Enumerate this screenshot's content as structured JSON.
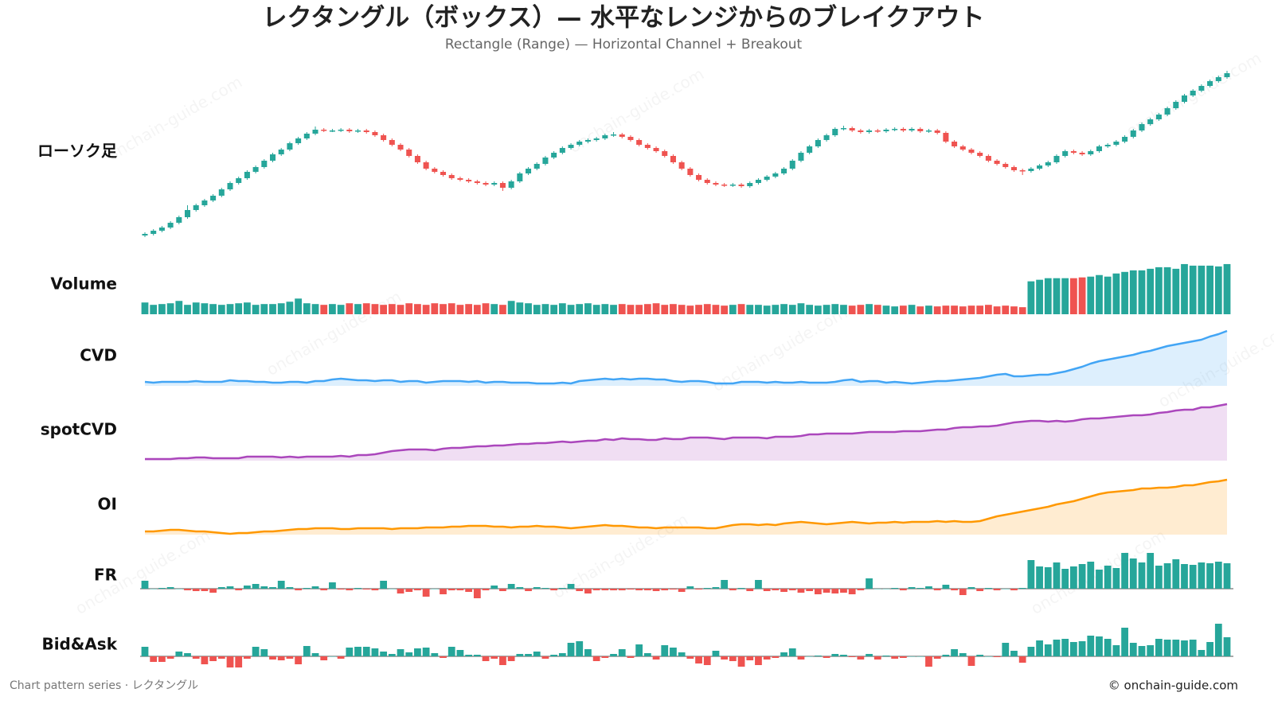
{
  "title": "レクタングル（ボックス）— 水平なレンジからのブレイクアウト",
  "subtitle": "Rectangle (Range) — Horizontal Channel + Breakout",
  "footer_left": "Chart pattern series · レクタングル",
  "footer_right": "© onchain-guide.com",
  "watermark": "onchain-guide.com",
  "chart_data": [
    {
      "type": "candlestick",
      "label": "ローソク足",
      "ylim": [
        0,
        212
      ],
      "up_color": "#26a69a",
      "down_color": "#ef5350",
      "open": [
        4,
        6,
        10,
        14,
        20,
        27,
        36,
        42,
        48,
        54,
        62,
        70,
        76,
        84,
        90,
        98,
        106,
        112,
        120,
        126,
        132,
        137,
        136,
        136,
        137,
        135,
        136,
        134,
        130,
        124,
        118,
        112,
        104,
        96,
        88,
        84,
        80,
        76,
        74,
        72,
        70,
        68,
        70,
        64,
        72,
        82,
        88,
        94,
        102,
        108,
        114,
        118,
        122,
        124,
        126,
        130,
        131,
        128,
        124,
        118,
        114,
        110,
        104,
        96,
        88,
        80,
        74,
        70,
        68,
        67,
        68,
        66,
        70,
        74,
        78,
        82,
        88,
        98,
        108,
        116,
        124,
        130,
        138,
        139,
        136,
        134,
        136,
        135,
        137,
        138,
        136,
        138,
        135,
        136,
        133,
        122,
        116,
        112,
        108,
        104,
        98,
        94,
        90,
        86,
        85,
        88,
        92,
        96,
        104,
        110,
        108,
        106,
        110,
        116,
        118,
        122,
        128,
        136,
        144,
        150,
        156,
        164,
        172,
        180,
        186,
        192,
        198,
        203
      ],
      "high": [
        8,
        12,
        16,
        22,
        29,
        42,
        44,
        50,
        56,
        64,
        72,
        78,
        86,
        92,
        100,
        108,
        114,
        122,
        128,
        134,
        141,
        139,
        138,
        139,
        139,
        138,
        138,
        136,
        132,
        126,
        120,
        114,
        106,
        98,
        90,
        86,
        82,
        78,
        76,
        74,
        72,
        72,
        72,
        74,
        84,
        90,
        96,
        104,
        110,
        116,
        120,
        124,
        126,
        128,
        132,
        134,
        133,
        130,
        126,
        120,
        116,
        112,
        106,
        98,
        90,
        82,
        76,
        72,
        70,
        70,
        70,
        72,
        76,
        80,
        84,
        90,
        100,
        110,
        118,
        126,
        132,
        140,
        142,
        141,
        138,
        138,
        138,
        139,
        140,
        140,
        140,
        140,
        138,
        138,
        135,
        124,
        118,
        114,
        110,
        106,
        100,
        96,
        92,
        88,
        90,
        94,
        98,
        106,
        112,
        112,
        110,
        112,
        118,
        120,
        124,
        130,
        138,
        146,
        152,
        158,
        166,
        174,
        182,
        188,
        194,
        200,
        205,
        211
      ],
      "low": [
        2,
        4,
        8,
        12,
        18,
        25,
        34,
        40,
        46,
        52,
        60,
        68,
        74,
        82,
        88,
        96,
        104,
        110,
        118,
        124,
        130,
        134,
        134,
        134,
        133,
        133,
        132,
        128,
        122,
        116,
        110,
        102,
        94,
        86,
        82,
        78,
        74,
        72,
        70,
        68,
        66,
        66,
        60,
        62,
        70,
        80,
        86,
        92,
        100,
        106,
        112,
        116,
        120,
        122,
        124,
        128,
        126,
        122,
        116,
        112,
        108,
        102,
        94,
        86,
        78,
        72,
        68,
        66,
        65,
        65,
        64,
        64,
        68,
        72,
        76,
        80,
        86,
        96,
        106,
        114,
        122,
        128,
        136,
        134,
        132,
        132,
        133,
        133,
        135,
        134,
        134,
        133,
        133,
        131,
        120,
        114,
        110,
        106,
        102,
        96,
        92,
        88,
        84,
        80,
        83,
        86,
        90,
        94,
        102,
        106,
        104,
        104,
        108,
        114,
        116,
        120,
        126,
        134,
        142,
        148,
        154,
        162,
        170,
        178,
        184,
        190,
        196,
        201
      ],
      "close": [
        6,
        10,
        14,
        20,
        27,
        36,
        42,
        48,
        54,
        62,
        70,
        76,
        84,
        90,
        98,
        106,
        112,
        120,
        126,
        132,
        137,
        136,
        136,
        137,
        135,
        136,
        134,
        130,
        124,
        118,
        112,
        104,
        96,
        88,
        84,
        80,
        76,
        74,
        72,
        70,
        68,
        70,
        64,
        72,
        82,
        88,
        94,
        102,
        108,
        114,
        118,
        122,
        124,
        126,
        130,
        131,
        128,
        124,
        118,
        114,
        110,
        104,
        96,
        88,
        80,
        74,
        70,
        68,
        67,
        68,
        66,
        70,
        74,
        78,
        82,
        88,
        98,
        108,
        116,
        124,
        130,
        138,
        139,
        136,
        134,
        136,
        135,
        137,
        138,
        136,
        138,
        135,
        136,
        133,
        122,
        116,
        112,
        108,
        104,
        98,
        94,
        90,
        86,
        85,
        88,
        92,
        96,
        104,
        110,
        108,
        106,
        110,
        116,
        118,
        122,
        128,
        136,
        144,
        150,
        156,
        164,
        172,
        180,
        186,
        192,
        198,
        203,
        208
      ]
    },
    {
      "type": "volume",
      "label": "Volume",
      "ylim": [
        0,
        68
      ],
      "values": [
        15,
        12,
        13,
        14,
        17,
        12,
        15,
        14,
        13,
        12,
        13,
        14,
        15,
        12,
        13,
        13,
        14,
        16,
        20,
        14,
        13,
        12,
        13,
        12,
        14,
        13,
        14,
        13,
        12,
        13,
        12,
        14,
        13,
        12,
        14,
        13,
        14,
        12,
        13,
        12,
        14,
        13,
        12,
        17,
        15,
        14,
        12,
        13,
        12,
        14,
        12,
        13,
        14,
        12,
        13,
        12,
        13,
        12,
        12,
        13,
        14,
        12,
        13,
        12,
        11,
        12,
        13,
        12,
        11,
        12,
        13,
        12,
        12,
        11,
        12,
        13,
        12,
        14,
        12,
        11,
        12,
        13,
        12,
        11,
        12,
        13,
        12,
        11,
        10,
        11,
        12,
        10,
        11,
        10,
        11,
        11,
        10,
        11,
        11,
        12,
        10,
        11,
        10,
        9,
        42,
        44,
        46,
        46,
        46,
        46,
        47,
        48,
        50,
        48,
        52,
        54,
        56,
        56,
        58,
        60,
        60,
        58,
        64,
        62,
        62,
        62,
        61,
        64
      ]
    },
    {
      "type": "area",
      "label": "CVD",
      "ylim": [
        0,
        80
      ],
      "color": "#42a5f5",
      "values": [
        5,
        4,
        5,
        5,
        5,
        5,
        6,
        5,
        5,
        5,
        7,
        6,
        6,
        5,
        5,
        4,
        4,
        5,
        5,
        4,
        6,
        6,
        8,
        9,
        8,
        7,
        7,
        6,
        7,
        7,
        5,
        6,
        6,
        4,
        5,
        6,
        6,
        6,
        5,
        6,
        4,
        5,
        5,
        4,
        4,
        4,
        3,
        3,
        3,
        4,
        3,
        6,
        7,
        8,
        9,
        8,
        9,
        8,
        9,
        9,
        8,
        8,
        6,
        5,
        6,
        6,
        5,
        3,
        3,
        3,
        5,
        5,
        5,
        4,
        5,
        4,
        4,
        5,
        4,
        4,
        4,
        5,
        7,
        8,
        5,
        6,
        6,
        4,
        5,
        4,
        3,
        4,
        5,
        6,
        6,
        7,
        8,
        9,
        10,
        12,
        14,
        15,
        12,
        12,
        13,
        14,
        14,
        16,
        18,
        21,
        24,
        28,
        31,
        33,
        35,
        37,
        39,
        42,
        44,
        47,
        50,
        52,
        54,
        56,
        58,
        62,
        65,
        69
      ]
    },
    {
      "type": "area",
      "label": "spotCVD",
      "ylim": [
        0,
        80
      ],
      "color": "#ab47bc",
      "values": [
        2,
        2,
        2,
        2,
        3,
        3,
        4,
        4,
        3,
        3,
        3,
        3,
        5,
        5,
        5,
        5,
        4,
        5,
        4,
        5,
        5,
        5,
        5,
        6,
        5,
        7,
        7,
        8,
        10,
        12,
        13,
        14,
        14,
        14,
        13,
        15,
        16,
        16,
        17,
        18,
        18,
        19,
        19,
        20,
        21,
        21,
        22,
        22,
        23,
        24,
        23,
        24,
        25,
        25,
        27,
        26,
        28,
        27,
        27,
        26,
        26,
        28,
        27,
        27,
        29,
        29,
        29,
        28,
        27,
        29,
        29,
        29,
        29,
        28,
        30,
        30,
        30,
        31,
        33,
        33,
        34,
        34,
        34,
        34,
        35,
        36,
        36,
        36,
        36,
        37,
        37,
        37,
        38,
        39,
        39,
        41,
        42,
        42,
        43,
        43,
        44,
        46,
        48,
        49,
        50,
        50,
        49,
        50,
        49,
        50,
        52,
        53,
        53,
        54,
        55,
        56,
        57,
        57,
        58,
        60,
        61,
        63,
        64,
        64,
        67,
        67,
        69,
        71
      ]
    },
    {
      "type": "area",
      "label": "OI",
      "ylim": [
        0,
        80
      ],
      "color": "#ff9800",
      "values": [
        4,
        4,
        5,
        6,
        6,
        5,
        4,
        4,
        3,
        2,
        1,
        2,
        2,
        3,
        4,
        4,
        5,
        6,
        7,
        7,
        8,
        8,
        8,
        7,
        7,
        8,
        8,
        8,
        8,
        7,
        8,
        8,
        8,
        9,
        9,
        9,
        10,
        10,
        11,
        11,
        11,
        10,
        10,
        9,
        10,
        10,
        11,
        10,
        10,
        9,
        8,
        9,
        10,
        11,
        12,
        11,
        11,
        10,
        9,
        9,
        8,
        9,
        9,
        9,
        9,
        9,
        8,
        8,
        10,
        12,
        13,
        13,
        12,
        13,
        12,
        14,
        15,
        16,
        15,
        14,
        13,
        14,
        15,
        16,
        15,
        14,
        15,
        15,
        16,
        15,
        16,
        16,
        16,
        17,
        16,
        17,
        16,
        16,
        17,
        20,
        23,
        25,
        27,
        29,
        31,
        33,
        35,
        38,
        40,
        42,
        45,
        48,
        51,
        53,
        54,
        55,
        56,
        58,
        58,
        59,
        59,
        60,
        62,
        62,
        64,
        66,
        67,
        69
      ]
    },
    {
      "type": "signed_bar",
      "label": "FR",
      "ylim": [
        -25,
        50
      ],
      "values": [
        10,
        0,
        1,
        2,
        0,
        -2,
        -3,
        -3,
        -5,
        2,
        3,
        -2,
        4,
        6,
        3,
        2,
        10,
        2,
        -2,
        1,
        3,
        -2,
        8,
        -1,
        -2,
        1,
        -1,
        -2,
        10,
        0,
        -6,
        -4,
        -2,
        -10,
        0,
        -7,
        -2,
        -2,
        -4,
        -12,
        -2,
        4,
        -3,
        6,
        2,
        -3,
        2,
        1,
        -2,
        1,
        6,
        -3,
        -6,
        -2,
        -2,
        -2,
        -2,
        -1,
        -2,
        -2,
        -3,
        -2,
        -1,
        -4,
        3,
        -1,
        1,
        2,
        11,
        -2,
        1,
        -3,
        11,
        -3,
        -2,
        -4,
        -2,
        -5,
        -3,
        -7,
        -5,
        -6,
        -5,
        -7,
        -2,
        13,
        0,
        0,
        1,
        -2,
        2,
        1,
        3,
        -2,
        5,
        -2,
        -8,
        2,
        -3,
        1,
        -2,
        0,
        -2,
        1,
        36,
        28,
        27,
        33,
        25,
        28,
        31,
        34,
        24,
        29,
        26,
        45,
        38,
        33,
        45,
        29,
        32,
        37,
        31,
        30,
        33,
        32,
        34,
        32
      ]
    },
    {
      "type": "signed_bar",
      "label": "Bid&Ask",
      "ylim": [
        -20,
        45
      ],
      "values": [
        12,
        -7,
        -7,
        -3,
        6,
        4,
        -3,
        -10,
        -6,
        -3,
        -14,
        -14,
        -3,
        12,
        9,
        -4,
        -5,
        -3,
        -10,
        13,
        4,
        -5,
        0,
        -3,
        11,
        12,
        12,
        10,
        6,
        3,
        9,
        5,
        10,
        11,
        4,
        -2,
        12,
        8,
        2,
        2,
        -6,
        -3,
        -11,
        -6,
        3,
        3,
        6,
        -3,
        2,
        4,
        17,
        19,
        9,
        -6,
        -2,
        3,
        9,
        -2,
        15,
        4,
        -4,
        14,
        11,
        5,
        -3,
        -9,
        -11,
        7,
        -4,
        -6,
        -13,
        -5,
        -11,
        -4,
        -2,
        5,
        10,
        -4,
        0,
        1,
        -2,
        3,
        2,
        -1,
        -4,
        3,
        -4,
        1,
        -3,
        -2,
        0,
        0,
        -13,
        -3,
        2,
        9,
        4,
        -12,
        2,
        0,
        -1,
        17,
        7,
        -8,
        12,
        20,
        15,
        21,
        22,
        18,
        19,
        26,
        25,
        22,
        14,
        36,
        17,
        13,
        14,
        22,
        21,
        21,
        20,
        21,
        8,
        18,
        41,
        24
      ]
    }
  ]
}
